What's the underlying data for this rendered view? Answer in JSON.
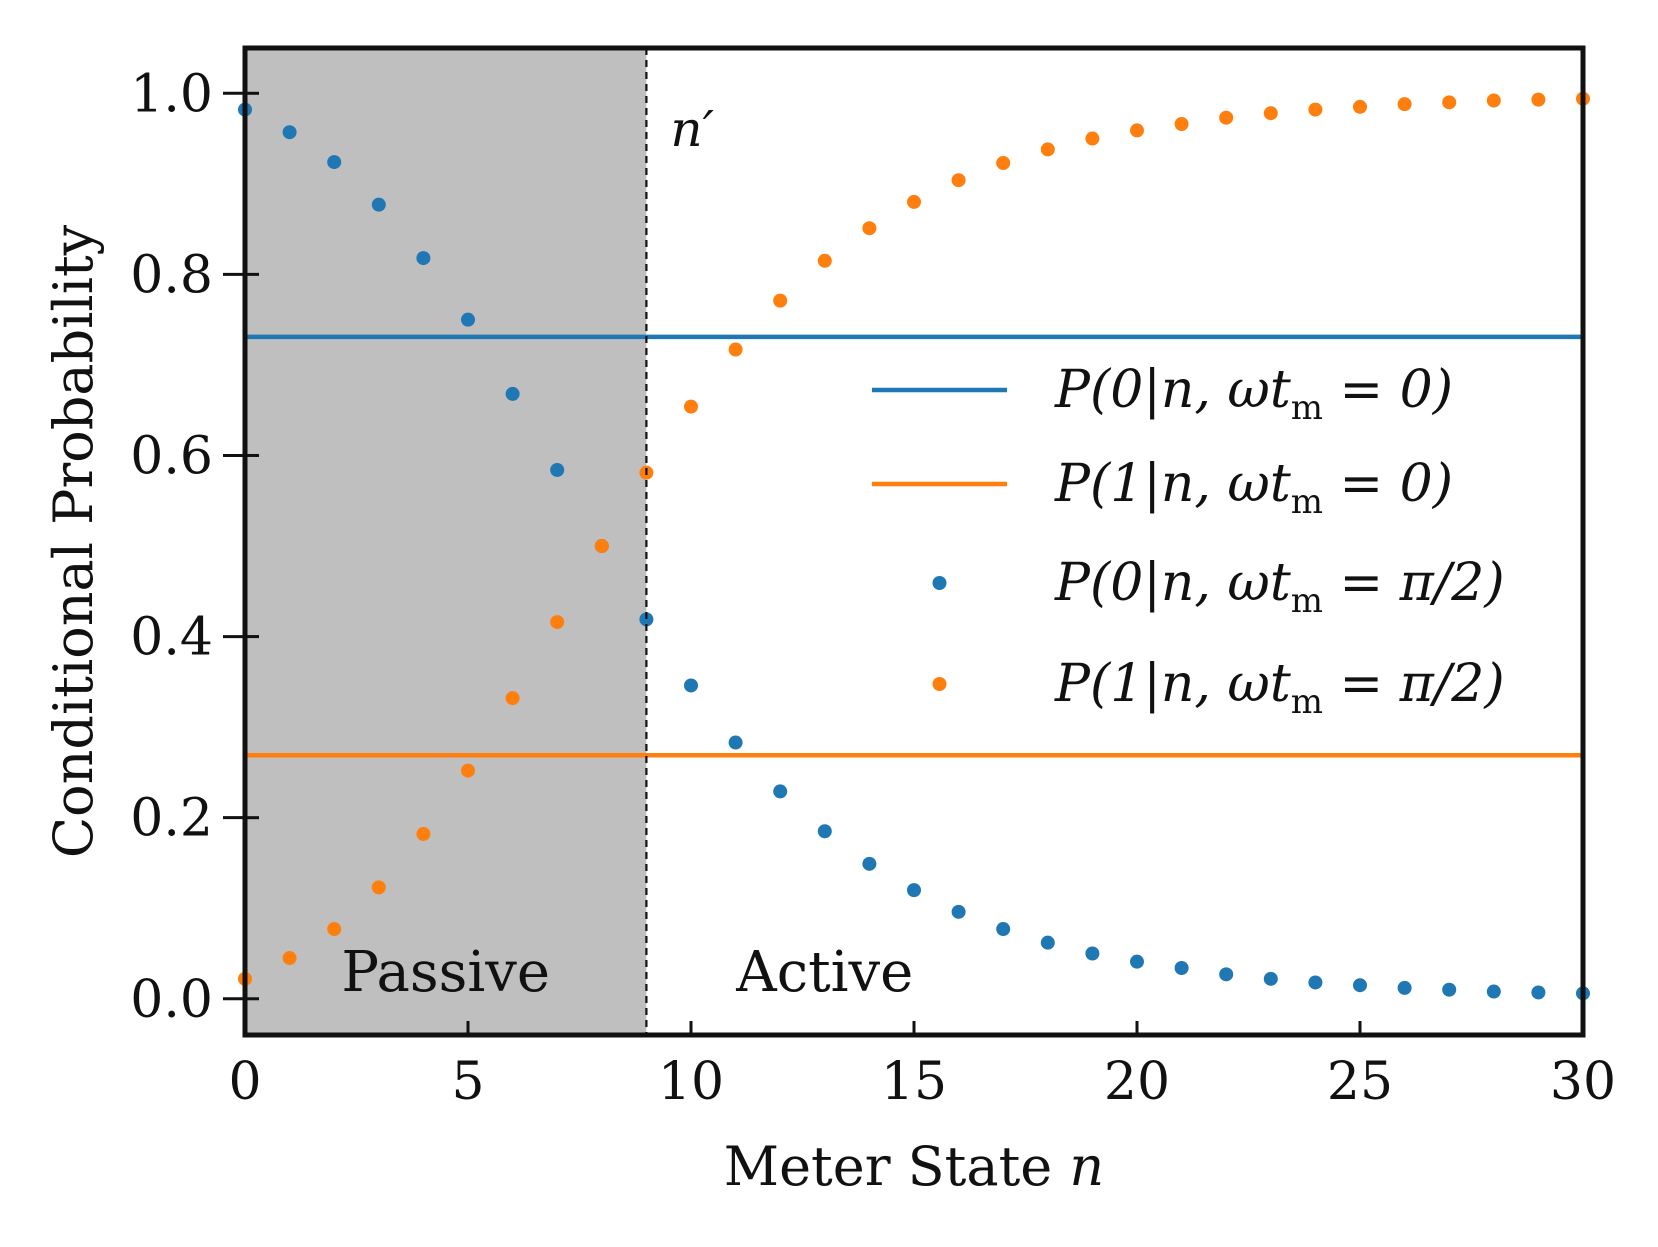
{
  "chart_data": {
    "type": "scatter",
    "title": "",
    "xlabel": "Meter State n",
    "ylabel": "Conditional Probability",
    "xlim": [
      0,
      30
    ],
    "ylim": [
      -0.04,
      1.05
    ],
    "xticks": [
      0,
      5,
      10,
      15,
      20,
      25,
      30
    ],
    "xtick_labels": [
      "0",
      "5",
      "10",
      "15",
      "20",
      "25",
      "30"
    ],
    "yticks": [
      0.0,
      0.2,
      0.4,
      0.6,
      0.8,
      1.0
    ],
    "ytick_labels": [
      "0.0",
      "0.2",
      "0.4",
      "0.6",
      "0.8",
      "1.0"
    ],
    "threshold": {
      "x": 9,
      "label": "n′"
    },
    "regions": [
      {
        "name": "Passive",
        "x_range": [
          0,
          9
        ],
        "fill": "#bfbfbf"
      },
      {
        "name": "Active",
        "x_range": [
          9,
          30
        ],
        "fill": "#ffffff"
      }
    ],
    "lines": [
      {
        "name": "P(0|n, ωt_m = 0)",
        "y": 0.731,
        "color": "#1f77b4"
      },
      {
        "name": "P(1|n, ωt_m = 0)",
        "y": 0.269,
        "color": "#ff7f0e"
      }
    ],
    "x": [
      0,
      1,
      2,
      3,
      4,
      5,
      6,
      7,
      8,
      9,
      10,
      11,
      12,
      13,
      14,
      15,
      16,
      17,
      18,
      19,
      20,
      21,
      22,
      23,
      24,
      25,
      26,
      27,
      28,
      29,
      30
    ],
    "series": [
      {
        "name": "P(0|n, ωt_m = π/2)",
        "color": "#1f77b4",
        "values": [
          0.982,
          0.957,
          0.924,
          0.877,
          0.818,
          0.75,
          0.668,
          0.584,
          0.5,
          0.419,
          0.346,
          0.283,
          0.229,
          0.185,
          0.149,
          0.12,
          0.096,
          0.077,
          0.062,
          0.05,
          0.041,
          0.034,
          0.027,
          0.022,
          0.018,
          0.015,
          0.012,
          0.01,
          0.008,
          0.007,
          0.006
        ]
      },
      {
        "name": "P(1|n, ωt_m = π/2)",
        "color": "#ff7f0e",
        "values": [
          0.022,
          0.045,
          0.077,
          0.123,
          0.182,
          0.252,
          0.332,
          0.416,
          0.5,
          0.581,
          0.654,
          0.717,
          0.771,
          0.815,
          0.851,
          0.88,
          0.904,
          0.923,
          0.938,
          0.95,
          0.959,
          0.966,
          0.973,
          0.978,
          0.982,
          0.985,
          0.988,
          0.99,
          0.992,
          0.993,
          0.994
        ]
      }
    ],
    "legend": {
      "placement": "center-right",
      "entries": [
        {
          "kind": "line",
          "color": "#1f77b4",
          "prefix": "P(0|n, ωt",
          "sub": "m",
          "suffix": " = 0)"
        },
        {
          "kind": "line",
          "color": "#ff7f0e",
          "prefix": "P(1|n, ωt",
          "sub": "m",
          "suffix": " = 0)"
        },
        {
          "kind": "dot",
          "color": "#1f77b4",
          "prefix": "P(0|n, ωt",
          "sub": "m",
          "suffix": " = π/2)"
        },
        {
          "kind": "dot",
          "color": "#ff7f0e",
          "prefix": "P(1|n, ωt",
          "sub": "m",
          "suffix": " = π/2)"
        }
      ]
    }
  }
}
